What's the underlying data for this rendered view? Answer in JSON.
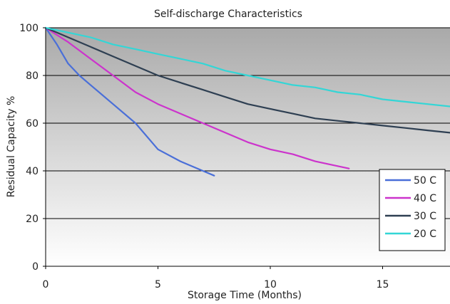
{
  "chart_data": {
    "type": "line",
    "title": "Self-discharge Characteristics",
    "xlabel": "Storage Time (Months)",
    "ylabel": "Residual Capacity %",
    "xlim": [
      0,
      18
    ],
    "ylim": [
      0,
      100
    ],
    "xticks": [
      0,
      5,
      10,
      15
    ],
    "xtick_labels": [
      "0",
      "5",
      "10",
      "15"
    ],
    "yticks": [
      0,
      20,
      40,
      60,
      80,
      100
    ],
    "ytick_labels": [
      "0",
      "20",
      "40",
      "60",
      "80",
      "100"
    ],
    "grid": "horizontal",
    "legend_position": "bottom-right",
    "series": [
      {
        "name": "50 C",
        "color": "#4a6fd8",
        "x": [
          0,
          0.5,
          1,
          1.5,
          2,
          3,
          4,
          5,
          6,
          7,
          7.5
        ],
        "y": [
          100,
          93,
          85,
          80,
          76,
          68,
          60,
          49,
          44,
          40,
          38
        ]
      },
      {
        "name": "40 C",
        "color": "#cc33cc",
        "x": [
          0,
          1,
          2,
          3,
          4,
          5,
          6,
          7,
          8,
          9,
          10,
          11,
          12,
          13,
          13.5
        ],
        "y": [
          100,
          94,
          87,
          80,
          73,
          68,
          64,
          60,
          56,
          52,
          49,
          47,
          44,
          42,
          41
        ]
      },
      {
        "name": "30 C",
        "color": "#2e3f52",
        "x": [
          0,
          1,
          2,
          3,
          4,
          5,
          6,
          7,
          8,
          9,
          10,
          11,
          12,
          13,
          14,
          15,
          16,
          17,
          18
        ],
        "y": [
          100,
          96,
          92,
          88,
          84,
          80,
          77,
          74,
          71,
          68,
          66,
          64,
          62,
          61,
          60,
          59,
          58,
          57,
          56
        ]
      },
      {
        "name": "20 C",
        "color": "#33d6d6",
        "x": [
          0,
          1,
          2,
          3,
          4,
          5,
          6,
          7,
          8,
          9,
          10,
          11,
          12,
          13,
          14,
          15,
          16,
          17,
          18
        ],
        "y": [
          100,
          98,
          96,
          93,
          91,
          89,
          87,
          85,
          82,
          80,
          78,
          76,
          75,
          73,
          72,
          70,
          69,
          68,
          67
        ]
      }
    ]
  }
}
